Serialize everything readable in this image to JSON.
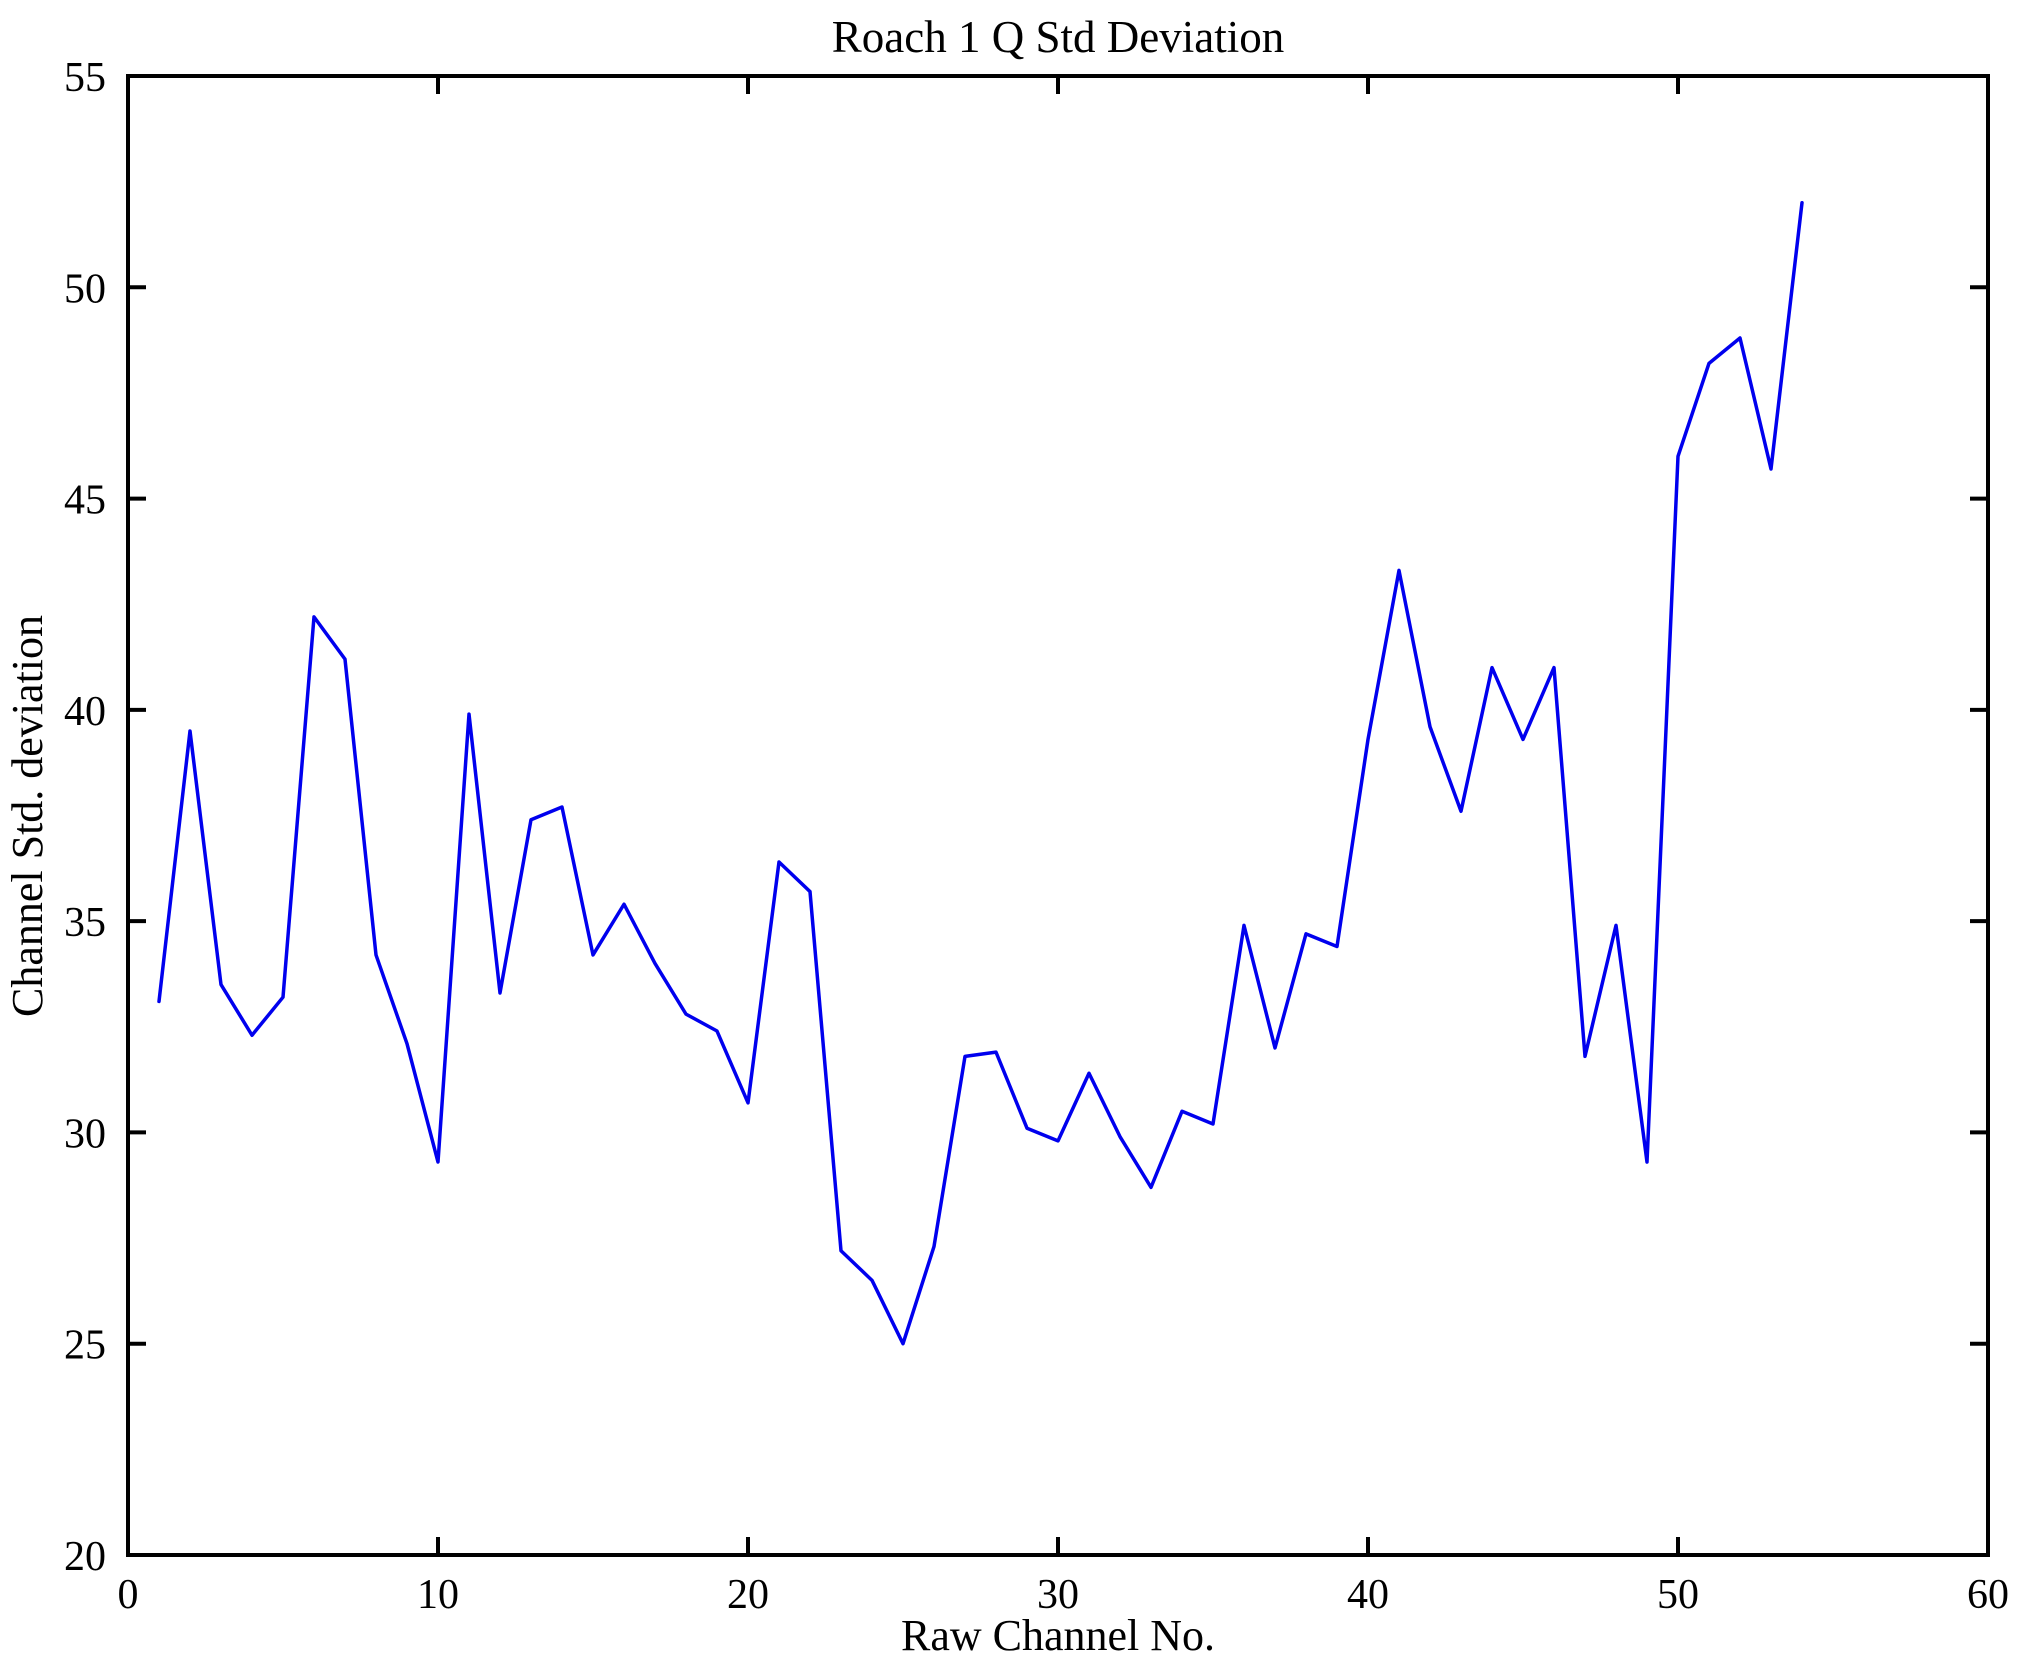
{
  "title": "Roach 1 Q Std Deviation",
  "chart_data": {
    "type": "line",
    "title": "Roach 1 Q Std Deviation",
    "xlabel": "Raw Channel No.",
    "ylabel": "Channel Std. deviation",
    "xlim": [
      0,
      60
    ],
    "ylim": [
      20,
      55
    ],
    "xticks": [
      0,
      10,
      20,
      30,
      40,
      50,
      60
    ],
    "yticks": [
      20,
      25,
      30,
      35,
      40,
      45,
      50,
      55
    ],
    "grid": false,
    "legend": "none",
    "line_color": "#0000EE",
    "axis_color": "#000000",
    "x": [
      1,
      2,
      3,
      4,
      5,
      6,
      7,
      8,
      9,
      10,
      11,
      12,
      13,
      14,
      15,
      16,
      17,
      18,
      19,
      20,
      21,
      22,
      23,
      24,
      25,
      26,
      27,
      28,
      29,
      30,
      31,
      32,
      33,
      34,
      35,
      36,
      37,
      38,
      39,
      40,
      41,
      42,
      43,
      44,
      45,
      46,
      47,
      48,
      49,
      50,
      51,
      52,
      53,
      54
    ],
    "values": [
      33.1,
      39.5,
      33.5,
      32.3,
      33.2,
      42.2,
      41.2,
      34.2,
      32.1,
      29.3,
      39.9,
      33.3,
      37.4,
      37.7,
      34.2,
      35.4,
      34.0,
      32.8,
      32.4,
      30.7,
      36.4,
      35.7,
      27.2,
      26.5,
      25.0,
      27.3,
      31.8,
      31.9,
      30.1,
      29.8,
      31.4,
      29.9,
      28.7,
      30.5,
      30.2,
      34.9,
      32.0,
      34.7,
      34.4,
      39.3,
      43.3,
      39.6,
      37.6,
      41.0,
      39.3,
      41.0,
      31.8,
      34.9,
      29.3,
      46.0,
      48.2,
      48.8,
      45.7,
      52.0
    ]
  }
}
